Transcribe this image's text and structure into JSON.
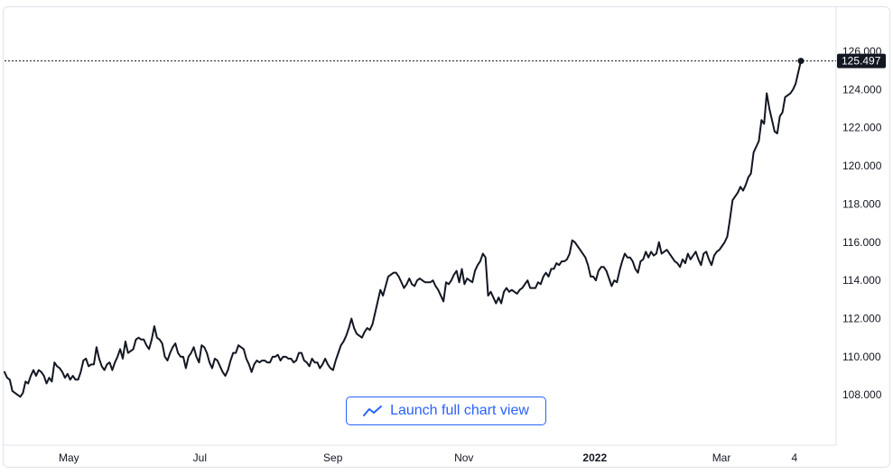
{
  "chart_data": {
    "type": "line",
    "ylim": [
      106.5,
      126.8
    ],
    "y_ticks": [
      "126.000",
      "124.000",
      "122.000",
      "120.000",
      "118.000",
      "116.000",
      "114.000",
      "112.000",
      "110.000",
      "108.000"
    ],
    "x_ticks": [
      {
        "label": "May",
        "bold": false
      },
      {
        "label": "Jul",
        "bold": false
      },
      {
        "label": "Sep",
        "bold": false
      },
      {
        "label": "Nov",
        "bold": false
      },
      {
        "label": "2022",
        "bold": true
      },
      {
        "label": "Mar",
        "bold": false
      },
      {
        "label": "4",
        "bold": false
      }
    ],
    "last_value_label": "125.497",
    "line_color": "#131722",
    "x_start": "2021-04-01",
    "x_end": "2022-04-07",
    "series": [
      {
        "values": [
          109.2,
          108.9,
          108.8,
          108.2,
          108.1,
          108.0,
          107.9,
          108.1,
          108.7,
          108.6,
          109.0,
          109.3,
          109.0,
          109.3,
          109.2,
          109.0,
          108.6,
          108.9,
          108.7,
          109.7,
          109.5,
          109.4,
          109.2,
          108.9,
          109.1,
          108.8,
          109.0,
          108.8,
          108.8,
          109.2,
          109.8,
          109.9,
          109.5,
          109.6,
          109.6,
          110.5,
          109.9,
          109.5,
          109.3,
          109.6,
          109.7,
          109.3,
          109.7,
          110.0,
          110.4,
          109.9,
          110.8,
          110.2,
          110.3,
          110.4,
          110.9,
          111.0,
          110.9,
          110.9,
          110.6,
          110.4,
          110.9,
          111.6,
          111.0,
          110.9,
          110.7,
          110.0,
          109.8,
          110.2,
          110.5,
          110.7,
          110.2,
          110.0,
          110.0,
          109.4,
          110.0,
          110.2,
          110.5,
          110.0,
          109.7,
          110.6,
          110.5,
          110.2,
          109.7,
          109.4,
          109.9,
          109.8,
          109.5,
          109.2,
          109.0,
          109.3,
          109.8,
          110.2,
          110.2,
          110.6,
          110.5,
          110.4,
          109.9,
          109.6,
          109.2,
          109.6,
          109.8,
          109.7,
          109.8,
          109.8,
          109.7,
          109.7,
          110.0,
          110.0,
          110.1,
          109.8,
          110.0,
          110.0,
          109.9,
          109.9,
          109.7,
          109.8,
          110.2,
          110.2,
          109.8,
          109.7,
          109.5,
          109.9,
          109.7,
          109.7,
          109.4,
          109.6,
          109.9,
          109.6,
          109.4,
          109.3,
          109.8,
          110.2,
          110.6,
          110.8,
          111.1,
          111.5,
          112.0,
          111.5,
          111.2,
          111.1,
          111.0,
          111.3,
          111.5,
          111.4,
          111.7,
          112.3,
          112.9,
          113.5,
          113.2,
          113.7,
          114.2,
          114.3,
          114.4,
          114.4,
          114.2,
          113.9,
          113.6,
          113.8,
          114.1,
          113.8,
          113.7,
          114.0,
          114.1,
          114.0,
          113.9,
          113.9,
          113.9,
          114.0,
          113.7,
          113.5,
          113.2,
          112.9,
          113.9,
          113.8,
          114.0,
          114.3,
          114.5,
          113.9,
          114.6,
          113.8,
          114.1,
          114.0,
          113.9,
          114.5,
          114.8,
          115.0,
          115.4,
          115.2,
          113.2,
          113.4,
          113.1,
          112.8,
          113.1,
          112.8,
          113.4,
          113.6,
          113.4,
          113.5,
          113.4,
          113.3,
          113.5,
          113.6,
          113.8,
          114.0,
          113.6,
          113.6,
          113.6,
          113.9,
          113.8,
          114.2,
          114.4,
          114.2,
          114.6,
          114.6,
          114.9,
          114.8,
          115.0,
          115.0,
          115.1,
          115.4,
          116.1,
          116.0,
          115.8,
          115.6,
          115.4,
          115.2,
          114.8,
          114.2,
          114.2,
          114.0,
          114.5,
          114.7,
          114.7,
          114.5,
          114.1,
          113.7,
          114.0,
          113.9,
          114.5,
          115.0,
          115.4,
          115.2,
          115.2,
          115.0,
          114.6,
          114.4,
          115.0,
          115.1,
          115.5,
          115.2,
          115.5,
          115.3,
          115.4,
          116.0,
          115.4,
          115.5,
          115.6,
          115.4,
          115.2,
          115.0,
          114.9,
          114.7,
          115.1,
          114.9,
          115.4,
          115.1,
          115.3,
          115.5,
          115.1,
          114.8,
          115.4,
          115.5,
          115.1,
          114.8,
          115.3,
          115.5,
          115.6,
          115.8,
          116.0,
          116.3,
          117.2,
          118.2,
          118.4,
          118.6,
          118.9,
          118.7,
          119.0,
          119.4,
          119.6,
          120.7,
          121.0,
          121.3,
          122.4,
          122.2,
          123.8,
          123.0,
          122.4,
          121.8,
          121.7,
          122.6,
          122.8,
          123.6,
          123.7,
          123.8,
          124.0,
          124.3,
          124.9,
          125.497
        ]
      }
    ]
  },
  "launch_button": {
    "label": "Launch full chart view",
    "icon": "chart-line-icon",
    "color": "#2962ff"
  }
}
